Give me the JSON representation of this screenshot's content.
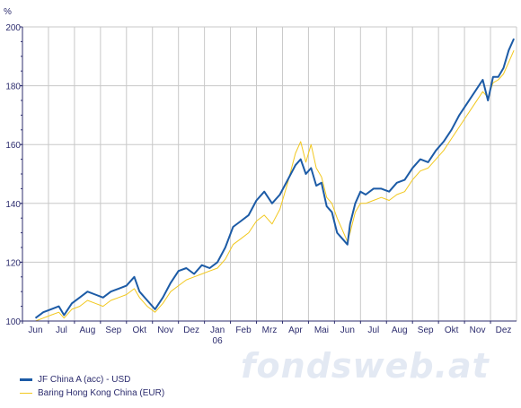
{
  "chart_data": {
    "type": "line",
    "unit_label": "%",
    "ylim": [
      100,
      200
    ],
    "y_ticks": [
      100,
      120,
      140,
      160,
      180,
      200
    ],
    "x_ticks": [
      {
        "label": "Jun",
        "sub": ""
      },
      {
        "label": "Jul",
        "sub": ""
      },
      {
        "label": "Aug",
        "sub": ""
      },
      {
        "label": "Sep",
        "sub": ""
      },
      {
        "label": "Okt",
        "sub": ""
      },
      {
        "label": "Nov",
        "sub": ""
      },
      {
        "label": "Dez",
        "sub": ""
      },
      {
        "label": "Jan",
        "sub": "06"
      },
      {
        "label": "Feb",
        "sub": ""
      },
      {
        "label": "Mrz",
        "sub": ""
      },
      {
        "label": "Apr",
        "sub": ""
      },
      {
        "label": "Mai",
        "sub": ""
      },
      {
        "label": "Jun",
        "sub": ""
      },
      {
        "label": "Jul",
        "sub": ""
      },
      {
        "label": "Aug",
        "sub": ""
      },
      {
        "label": "Sep",
        "sub": ""
      },
      {
        "label": "Okt",
        "sub": ""
      },
      {
        "label": "Nov",
        "sub": ""
      },
      {
        "label": "Dez",
        "sub": ""
      }
    ],
    "grid": true,
    "series": [
      {
        "name": "JF China A (acc) - USD",
        "color": "#1c5ba6",
        "x": [
          0,
          0.3,
          0.6,
          0.9,
          1.1,
          1.4,
          1.7,
          2.0,
          2.3,
          2.6,
          2.9,
          3.2,
          3.5,
          3.8,
          4.0,
          4.3,
          4.6,
          4.9,
          5.2,
          5.5,
          5.8,
          6.1,
          6.4,
          6.7,
          7.0,
          7.3,
          7.6,
          7.9,
          8.2,
          8.5,
          8.8,
          9.1,
          9.4,
          9.7,
          10.0,
          10.2,
          10.4,
          10.6,
          10.8,
          11.0,
          11.2,
          11.4,
          11.6,
          11.8,
          12.0,
          12.1,
          12.3,
          12.5,
          12.7,
          13.0,
          13.3,
          13.6,
          13.9,
          14.2,
          14.5,
          14.8,
          15.1,
          15.4,
          15.7,
          16.0,
          16.3,
          16.6,
          16.9,
          17.2,
          17.4,
          17.6,
          17.8,
          18.0,
          18.2,
          18.4
        ],
        "values": [
          101,
          103,
          104,
          105,
          102,
          106,
          108,
          110,
          109,
          108,
          110,
          111,
          112,
          115,
          110,
          107,
          104,
          108,
          113,
          117,
          118,
          116,
          119,
          118,
          120,
          125,
          132,
          134,
          136,
          141,
          144,
          140,
          143,
          148,
          153,
          155,
          150,
          152,
          146,
          147,
          139,
          137,
          130,
          128,
          126,
          133,
          140,
          144,
          143,
          145,
          145,
          144,
          147,
          148,
          152,
          155,
          154,
          158,
          161,
          165,
          170,
          174,
          178,
          182,
          175,
          183,
          183,
          186,
          192,
          196
        ]
      },
      {
        "name": "Baring Hong Kong China (EUR)",
        "color": "#f2c81e",
        "x": [
          0,
          0.3,
          0.6,
          0.9,
          1.1,
          1.4,
          1.7,
          2.0,
          2.3,
          2.6,
          2.9,
          3.2,
          3.5,
          3.8,
          4.0,
          4.3,
          4.6,
          4.9,
          5.2,
          5.5,
          5.8,
          6.1,
          6.4,
          6.7,
          7.0,
          7.3,
          7.6,
          7.9,
          8.2,
          8.5,
          8.8,
          9.1,
          9.4,
          9.7,
          10.0,
          10.2,
          10.4,
          10.6,
          10.8,
          11.0,
          11.2,
          11.4,
          11.6,
          11.8,
          12.0,
          12.1,
          12.3,
          12.5,
          12.7,
          13.0,
          13.3,
          13.6,
          13.9,
          14.2,
          14.5,
          14.8,
          15.1,
          15.4,
          15.7,
          16.0,
          16.3,
          16.6,
          16.9,
          17.2,
          17.4,
          17.6,
          17.8,
          18.0,
          18.2,
          18.4
        ],
        "values": [
          100,
          101,
          102,
          103,
          101,
          104,
          105,
          107,
          106,
          105,
          107,
          108,
          109,
          111,
          108,
          105,
          103,
          106,
          110,
          112,
          114,
          115,
          116,
          117,
          118,
          121,
          126,
          128,
          130,
          134,
          136,
          133,
          138,
          147,
          157,
          161,
          154,
          160,
          152,
          149,
          142,
          140,
          135,
          131,
          127,
          130,
          137,
          140,
          140,
          141,
          142,
          141,
          143,
          144,
          148,
          151,
          152,
          155,
          158,
          162,
          166,
          170,
          174,
          178,
          176,
          181,
          182,
          184,
          188,
          192
        ]
      }
    ]
  },
  "watermark": "fondsweb.at"
}
